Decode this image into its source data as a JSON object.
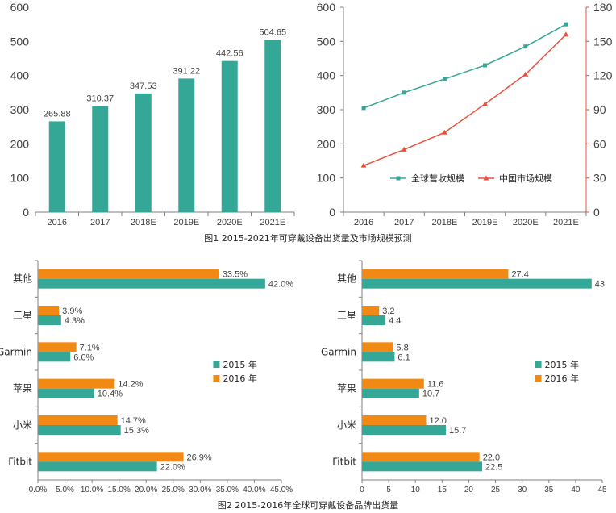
{
  "colors": {
    "teal": "#35A796",
    "orange": "#F08A14",
    "red": "#E8503C",
    "axis": "#7f7f7f"
  },
  "captions": {
    "fig1": "图1  2015-2021年可穿戴设备出货量及市场规模预测",
    "fig2": "图2  2015-2016年全球可穿戴设备品牌出货量"
  },
  "chart_data": [
    {
      "type": "bar",
      "categories": [
        "2016",
        "2017",
        "2018E",
        "2019E",
        "2020E",
        "2021E"
      ],
      "values": [
        265.88,
        310.37,
        347.53,
        391.22,
        442.56,
        504.65
      ],
      "value_labels": [
        "265.88",
        "310.37",
        "347.53",
        "391.22",
        "442.56",
        "504.65"
      ],
      "ylim": [
        0,
        600
      ],
      "yticks": [
        "0",
        "100",
        "200",
        "300",
        "400",
        "500",
        "600"
      ],
      "xlabel": "",
      "ylabel": ""
    },
    {
      "type": "line",
      "categories": [
        "2016",
        "2017",
        "2018E",
        "2019E",
        "2020E",
        "2021E"
      ],
      "series": [
        {
          "name": "全球营收规模",
          "axis": "left",
          "marker": "square",
          "values": [
            305,
            350,
            390,
            430,
            485,
            550
          ]
        },
        {
          "name": "中国市场规模",
          "axis": "right",
          "marker": "triangle",
          "values": [
            41,
            55,
            70,
            95,
            121,
            156
          ]
        }
      ],
      "ylim_left": [
        0,
        600
      ],
      "yticks_left": [
        "0",
        "100",
        "200",
        "300",
        "400",
        "500",
        "600"
      ],
      "ylim_right": [
        0,
        180
      ],
      "yticks_right": [
        "0",
        "30",
        "60",
        "90",
        "120",
        "150",
        "180"
      ],
      "legend_position": "bottom-center"
    },
    {
      "type": "bar",
      "orientation": "horizontal",
      "categories": [
        "其他",
        "三星",
        "Garmin",
        "苹果",
        "小米",
        "Fitbit"
      ],
      "series": [
        {
          "name": "2016 年",
          "values": [
            33.5,
            3.9,
            7.1,
            14.2,
            14.7,
            26.9
          ],
          "labels": [
            "33.5%",
            "3.9%",
            "7.1%",
            "14.2%",
            "14.7%",
            "26.9%"
          ]
        },
        {
          "name": "2015 年",
          "values": [
            42.0,
            4.3,
            6.0,
            10.4,
            15.3,
            22.0
          ],
          "labels": [
            "42.0%",
            "4.3%",
            "6.0%",
            "10.4%",
            "15.3%",
            "22.0%"
          ]
        }
      ],
      "xlim": [
        0,
        45
      ],
      "xticks": [
        "0.0%",
        "5.0%",
        "10.0%",
        "15.0%",
        "20.0%",
        "25.0%",
        "30.0%",
        "35.0%",
        "40.0%",
        "45.0%"
      ],
      "legend": [
        "2015 年",
        "2016 年"
      ],
      "legend_position": "right"
    },
    {
      "type": "bar",
      "orientation": "horizontal",
      "categories": [
        "其他",
        "三星",
        "Garmin",
        "苹果",
        "小米",
        "Fitbit"
      ],
      "series": [
        {
          "name": "2016 年",
          "values": [
            27.4,
            3.2,
            5.8,
            11.6,
            12.0,
            22.0
          ],
          "labels": [
            "27.4",
            "3.2",
            "5.8",
            "11.6",
            "12.0",
            "22.0"
          ]
        },
        {
          "name": "2015 年",
          "values": [
            43,
            4.4,
            6.1,
            10.7,
            15.7,
            22.5
          ],
          "labels": [
            "43",
            "4.4",
            "6.1",
            "10.7",
            "15.7",
            "22.5"
          ]
        }
      ],
      "xlim": [
        0,
        45
      ],
      "xticks": [
        "0",
        "5",
        "10",
        "15",
        "20",
        "25",
        "30",
        "35",
        "40",
        "45"
      ],
      "legend": [
        "2015 年",
        "2016 年"
      ],
      "legend_position": "right"
    }
  ]
}
